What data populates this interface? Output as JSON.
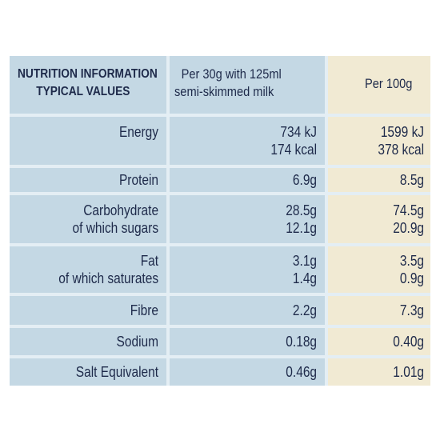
{
  "header": {
    "title_line1": "NUTRITION INFORMATION",
    "title_line2": "TYPICAL VALUES",
    "col1_line1": "Per 30g with 125ml",
    "col1_line2": "semi-skimmed milk",
    "col2": "Per 100g"
  },
  "rows": [
    {
      "label": [
        "Energy"
      ],
      "per30": [
        "734 kJ",
        "174 kcal"
      ],
      "per100": [
        "1599 kJ",
        "378 kcal"
      ]
    },
    {
      "label": [
        "Protein"
      ],
      "per30": [
        "6.9g"
      ],
      "per100": [
        "8.5g"
      ]
    },
    {
      "label": [
        "Carbohydrate",
        "of which sugars"
      ],
      "per30": [
        "28.5g",
        "12.1g"
      ],
      "per100": [
        "74.5g",
        "20.9g"
      ]
    },
    {
      "label": [
        "Fat",
        "of which saturates"
      ],
      "per30": [
        "3.1g",
        "1.4g"
      ],
      "per100": [
        "3.5g",
        "0.9g"
      ]
    },
    {
      "label": [
        "Fibre"
      ],
      "per30": [
        "2.2g"
      ],
      "per100": [
        "7.3g"
      ]
    },
    {
      "label": [
        "Sodium"
      ],
      "per30": [
        "0.18g"
      ],
      "per100": [
        "0.40g"
      ]
    },
    {
      "label": [
        "Salt Equivalent"
      ],
      "per30": [
        "0.46g"
      ],
      "per100": [
        "1.01g"
      ]
    }
  ],
  "colors": {
    "blue_panel": "#c4d8e4",
    "cream_column": "#f1ead3",
    "text": "#1e2a4a"
  }
}
